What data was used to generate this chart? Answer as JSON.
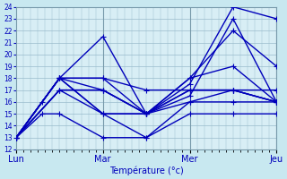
{
  "title": "Température (°c)",
  "bg_color": "#c8e8f0",
  "plot_bg_color": "#d8eef5",
  "line_color": "#0000bb",
  "grid_color": "#99bbcc",
  "ylim": [
    12,
    24
  ],
  "yticks": [
    12,
    13,
    14,
    15,
    16,
    17,
    18,
    19,
    20,
    21,
    22,
    23,
    24
  ],
  "day_positions": [
    0,
    1,
    2,
    3
  ],
  "day_labels": [
    "Lun",
    "Mar",
    "Mer",
    "Jeu"
  ],
  "xlim": [
    0,
    3
  ],
  "series": [
    {
      "x": [
        0,
        0.5,
        1.0,
        1.5,
        2.0,
        2.5,
        3.0
      ],
      "y": [
        13,
        18,
        18,
        17,
        17,
        17,
        16
      ]
    },
    {
      "x": [
        0,
        0.5,
        1.0,
        1.5,
        2.0,
        2.5,
        3.0
      ],
      "y": [
        13,
        18,
        15,
        15,
        17,
        17,
        17
      ]
    },
    {
      "x": [
        0,
        0.5,
        1.0,
        1.5,
        2.0,
        2.5,
        3.0
      ],
      "y": [
        13,
        17,
        17,
        15,
        16,
        17,
        16
      ]
    },
    {
      "x": [
        0,
        0.5,
        1.0,
        1.5,
        2.0,
        2.5,
        3.0
      ],
      "y": [
        13,
        17,
        15,
        13,
        16,
        16,
        16
      ]
    },
    {
      "x": [
        0,
        0.5,
        1.0,
        1.5,
        2.0,
        2.5,
        3.0
      ],
      "y": [
        13,
        18,
        21.5,
        15,
        17.5,
        24,
        23
      ]
    },
    {
      "x": [
        0,
        0.5,
        1.0,
        1.5,
        2.0,
        2.5,
        3.0
      ],
      "y": [
        13,
        18,
        17,
        15,
        18,
        22,
        19
      ]
    },
    {
      "x": [
        0,
        0.5,
        1.0,
        1.5,
        2.0,
        2.5,
        3.0
      ],
      "y": [
        13,
        17,
        17,
        15,
        16.5,
        23,
        16
      ]
    },
    {
      "x": [
        0,
        0.5,
        1.0,
        1.5,
        2.0,
        2.5,
        3.0
      ],
      "y": [
        13,
        18,
        15,
        15,
        18,
        19,
        16
      ]
    },
    {
      "x": [
        0,
        0.3,
        0.5,
        1.0,
        1.5,
        2.0,
        2.5,
        3.0
      ],
      "y": [
        13,
        16,
        18,
        18,
        15,
        17,
        17,
        16
      ]
    },
    {
      "x": [
        0,
        0.3,
        0.5,
        1.0,
        1.5,
        2.0,
        2.5,
        3.0
      ],
      "y": [
        13,
        15,
        15,
        13,
        13,
        15,
        15,
        15
      ]
    }
  ],
  "marker": "+",
  "markersize": 4,
  "linewidth": 1.0
}
